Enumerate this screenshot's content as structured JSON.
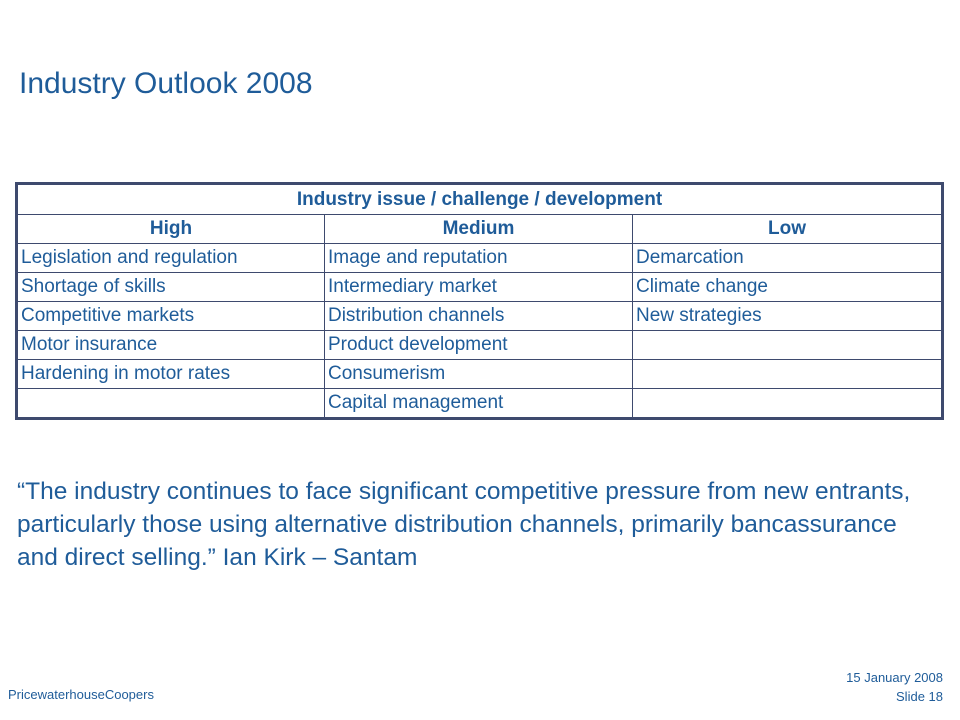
{
  "slide": {
    "title": "Industry Outlook 2008"
  },
  "table": {
    "header": "Industry issue / challenge / development",
    "columns": [
      "High",
      "Medium",
      "Low"
    ],
    "rows": [
      [
        "Legislation and regulation",
        "Image and reputation",
        "Demarcation"
      ],
      [
        "Shortage of skills",
        "Intermediary market",
        "Climate change"
      ],
      [
        "Competitive markets",
        "Distribution channels",
        "New strategies"
      ],
      [
        "Motor insurance",
        "Product development",
        ""
      ],
      [
        "Hardening in motor rates",
        "Consumerism",
        ""
      ],
      [
        "",
        "Capital management",
        ""
      ]
    ]
  },
  "quote": {
    "text": "“The industry continues to face significant competitive pressure from new entrants, particularly those using alternative distribution channels, primarily bancassurance and direct selling.” Ian Kirk – Santam"
  },
  "footer": {
    "company": "PricewaterhouseCoopers",
    "date": "15 January 2008",
    "slide": "Slide 18"
  }
}
